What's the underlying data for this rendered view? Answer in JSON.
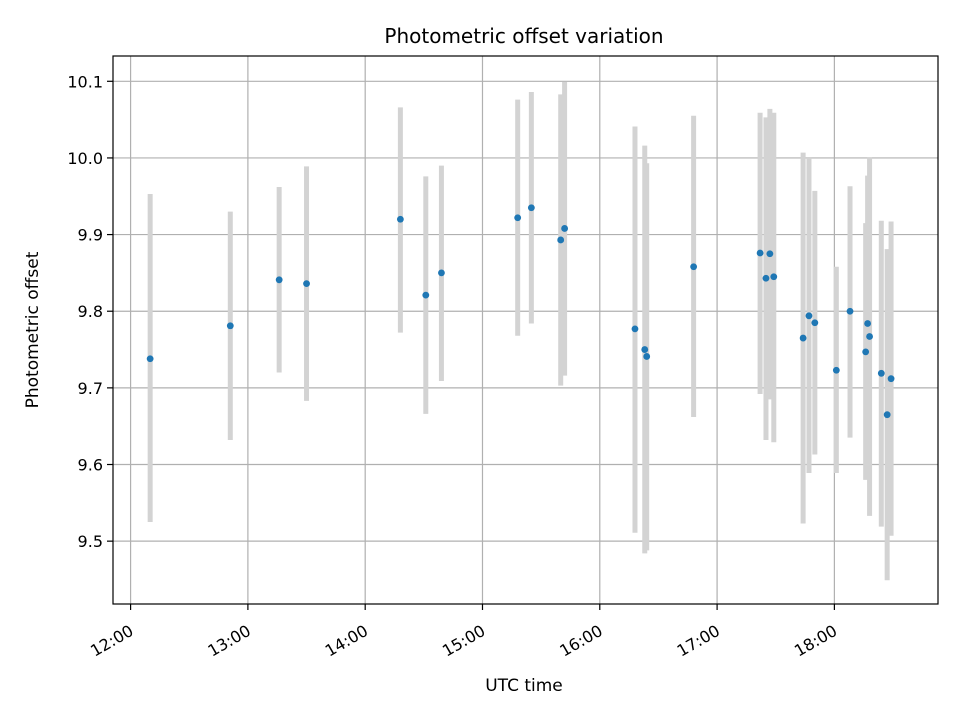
{
  "chart_data": {
    "type": "scatter",
    "title": "Photometric offset variation",
    "xlabel": "UTC time",
    "ylabel": "Photometric offset",
    "x_tick_labels": [
      "12:00",
      "13:00",
      "14:00",
      "15:00",
      "16:00",
      "17:00",
      "18:00"
    ],
    "x_tick_values": [
      "12:00",
      "13:00",
      "14:00",
      "15:00",
      "16:00",
      "17:00",
      "18:00"
    ],
    "y_ticks": [
      9.5,
      9.6,
      9.7,
      9.8,
      9.9,
      10.0,
      10.1
    ],
    "y_tick_labels": [
      "9.5",
      "9.6",
      "9.7",
      "9.8",
      "9.9",
      "10.0",
      "10.1"
    ],
    "xlim": [
      "11:51",
      "18:53"
    ],
    "ylim": [
      9.418,
      10.133
    ],
    "grid": true,
    "colors": {
      "points": "#1f77b4",
      "error_bars": "#d3d3d3",
      "grid": "#b0b0b0"
    },
    "series": [
      {
        "points": [
          {
            "x": "12:10",
            "y": 9.738,
            "ylow": 9.525,
            "yhigh": 9.953
          },
          {
            "x": "12:51",
            "y": 9.781,
            "ylow": 9.632,
            "yhigh": 9.93
          },
          {
            "x": "13:16",
            "y": 9.841,
            "ylow": 9.72,
            "yhigh": 9.962
          },
          {
            "x": "13:30",
            "y": 9.836,
            "ylow": 9.683,
            "yhigh": 9.989
          },
          {
            "x": "14:18",
            "y": 9.92,
            "ylow": 9.772,
            "yhigh": 10.066
          },
          {
            "x": "14:31",
            "y": 9.821,
            "ylow": 9.666,
            "yhigh": 9.976
          },
          {
            "x": "14:39",
            "y": 9.85,
            "ylow": 9.709,
            "yhigh": 9.99
          },
          {
            "x": "15:18",
            "y": 9.922,
            "ylow": 9.768,
            "yhigh": 10.076
          },
          {
            "x": "15:25",
            "y": 9.935,
            "ylow": 9.784,
            "yhigh": 10.086
          },
          {
            "x": "15:40",
            "y": 9.893,
            "ylow": 9.703,
            "yhigh": 10.083
          },
          {
            "x": "15:42",
            "y": 9.908,
            "ylow": 9.716,
            "yhigh": 10.099
          },
          {
            "x": "16:18",
            "y": 9.777,
            "ylow": 9.511,
            "yhigh": 10.041
          },
          {
            "x": "16:23",
            "y": 9.75,
            "ylow": 9.484,
            "yhigh": 10.016
          },
          {
            "x": "16:24",
            "y": 9.741,
            "ylow": 9.488,
            "yhigh": 9.993
          },
          {
            "x": "16:48",
            "y": 9.858,
            "ylow": 9.662,
            "yhigh": 10.055
          },
          {
            "x": "17:27",
            "y": 9.875,
            "ylow": 9.685,
            "yhigh": 10.064
          },
          {
            "x": "17:22",
            "y": 9.876,
            "ylow": 9.692,
            "yhigh": 10.059
          },
          {
            "x": "17:25",
            "y": 9.843,
            "ylow": 9.632,
            "yhigh": 10.053
          },
          {
            "x": "17:29",
            "y": 9.845,
            "ylow": 9.629,
            "yhigh": 10.059
          },
          {
            "x": "17:44",
            "y": 9.765,
            "ylow": 9.523,
            "yhigh": 10.007
          },
          {
            "x": "17:47",
            "y": 9.794,
            "ylow": 9.589,
            "yhigh": 10.0
          },
          {
            "x": "17:50",
            "y": 9.785,
            "ylow": 9.613,
            "yhigh": 9.957
          },
          {
            "x": "18:01",
            "y": 9.723,
            "ylow": 9.589,
            "yhigh": 9.858
          },
          {
            "x": "18:08",
            "y": 9.8,
            "ylow": 9.635,
            "yhigh": 9.963
          },
          {
            "x": "18:16",
            "y": 9.747,
            "ylow": 9.58,
            "yhigh": 9.915
          },
          {
            "x": "18:17",
            "y": 9.784,
            "ylow": 9.59,
            "yhigh": 9.977
          },
          {
            "x": "18:18",
            "y": 9.767,
            "ylow": 9.533,
            "yhigh": 10.001
          },
          {
            "x": "18:24",
            "y": 9.719,
            "ylow": 9.519,
            "yhigh": 9.918
          },
          {
            "x": "18:27",
            "y": 9.665,
            "ylow": 9.449,
            "yhigh": 9.881
          },
          {
            "x": "18:29",
            "y": 9.712,
            "ylow": 9.507,
            "yhigh": 9.917
          }
        ]
      }
    ]
  }
}
